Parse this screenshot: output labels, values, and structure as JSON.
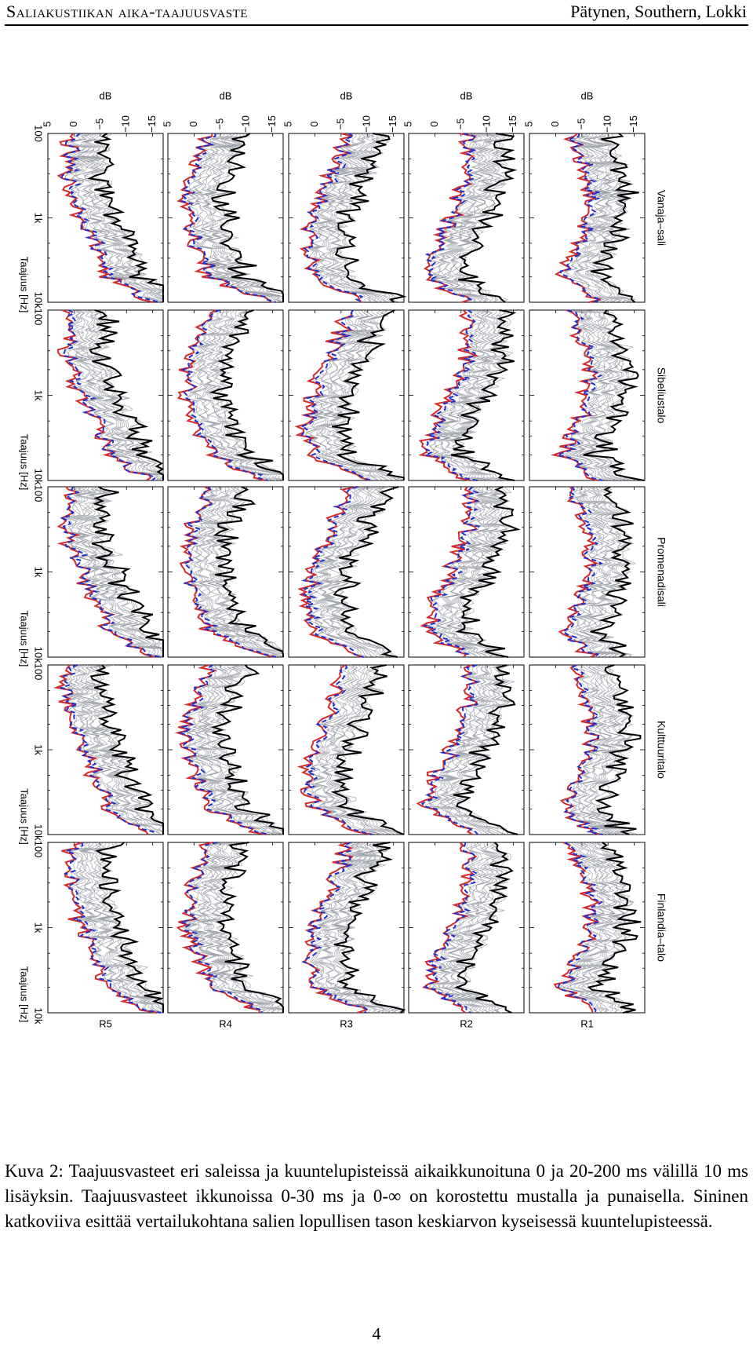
{
  "header": {
    "left": "Saliakustiikan aika-taajuusvaste",
    "right": "Pätynen, Southern, Lokki"
  },
  "figure": {
    "halls": [
      "Vanaja–sali",
      "Sibeliustalo",
      "Promenadisali",
      "Kulttuuritalo",
      "Finlandia–talo"
    ],
    "positions": [
      "R1",
      "R2",
      "R3",
      "R4",
      "R5"
    ],
    "y_label": "dB",
    "y_ticks": [
      "5",
      "0",
      "−5",
      "−10",
      "−15"
    ],
    "x_label": "Taajuus [Hz]",
    "x_ticks_first": [
      "100",
      "1k",
      "10k"
    ],
    "x_ticks_joined": [
      "10k100",
      "1k"
    ],
    "x_axis_scale": "log",
    "x_range_hz": [
      100,
      10000
    ],
    "y_range_db": [
      -17,
      5
    ],
    "colors": {
      "gray_windows": "#8a8f98",
      "window_0_30ms": "#000000",
      "window_0_inf": "#d42a2a",
      "reference_dashed": "#1f2fd0"
    }
  },
  "caption": {
    "text": "Kuva 2: Taajuusvasteet eri saleissa ja kuuntelupisteissä aikaikkunoituna 0 ja 20-200 ms välillä 10 ms lisäyksin. Taajuusvasteet ikkunoissa 0-30 ms ja 0-∞ on korostettu mustalla ja punaisella. Sininen katkoviiva esittää vertailukohtana salien lopullisen tason keskiarvon kyseisessä kuuntelupisteessä."
  },
  "page_number": "4"
}
